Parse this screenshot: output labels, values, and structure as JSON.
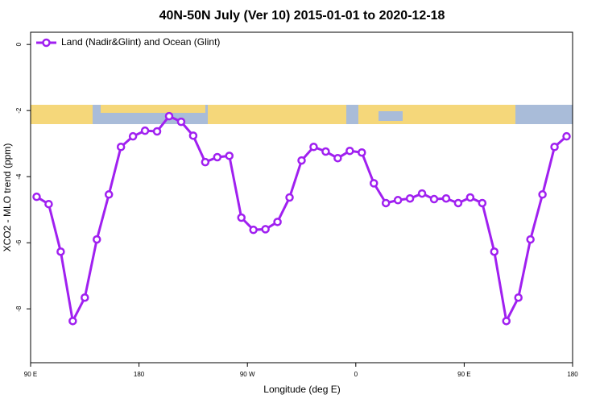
{
  "chart_data": {
    "type": "line",
    "title": "40N-50N July (Ver 10)   2015-01-01 to 2020-12-18",
    "x_label": "Longitude (deg E)",
    "y_label": "XCO2 - MLO trend (ppm)",
    "x": [
      95,
      105,
      115,
      125,
      135,
      145,
      155,
      165,
      175,
      185,
      195,
      205,
      215,
      225,
      235,
      245,
      255,
      265,
      275,
      285,
      295,
      305,
      315,
      325,
      335,
      345,
      355,
      365,
      375,
      385,
      395,
      405,
      415,
      425,
      435,
      445,
      455,
      465,
      475,
      485,
      495,
      505,
      515,
      525,
      535
    ],
    "series": [
      {
        "name": "Land (Nadir&Glint) and Ocean (Glint)",
        "color": "#a020f0",
        "values": [
          -4.61,
          -4.83,
          -6.27,
          -8.37,
          -7.66,
          -5.9,
          -4.54,
          -3.1,
          -2.78,
          -2.61,
          -2.63,
          -2.17,
          -2.34,
          -2.76,
          -3.56,
          -3.41,
          -3.37,
          -5.24,
          -5.61,
          -5.59,
          -5.37,
          -4.63,
          -3.51,
          -3.1,
          -3.24,
          -3.44,
          -3.22,
          -3.27,
          -4.2,
          -4.8,
          -4.71,
          -4.66,
          -4.51,
          -4.68,
          -4.66,
          -4.8,
          -4.63,
          -4.8,
          -6.27,
          -8.37,
          -7.66,
          -5.9,
          -4.54,
          -3.1,
          -2.78
        ]
      }
    ],
    "xlim": [
      90,
      540
    ],
    "xticks": [
      {
        "value": 90,
        "label": "90 E"
      },
      180,
      {
        "value": 270,
        "label": "90 W"
      },
      {
        "value": 360,
        "label": "0"
      },
      {
        "value": 450,
        "label": "90 E"
      },
      {
        "value": 540,
        "label": "180"
      }
    ],
    "ylim": [
      -9.63,
      0.37
    ],
    "yticks": [
      0,
      -2,
      -4,
      -6,
      -8
    ],
    "legend": "top-left"
  }
}
